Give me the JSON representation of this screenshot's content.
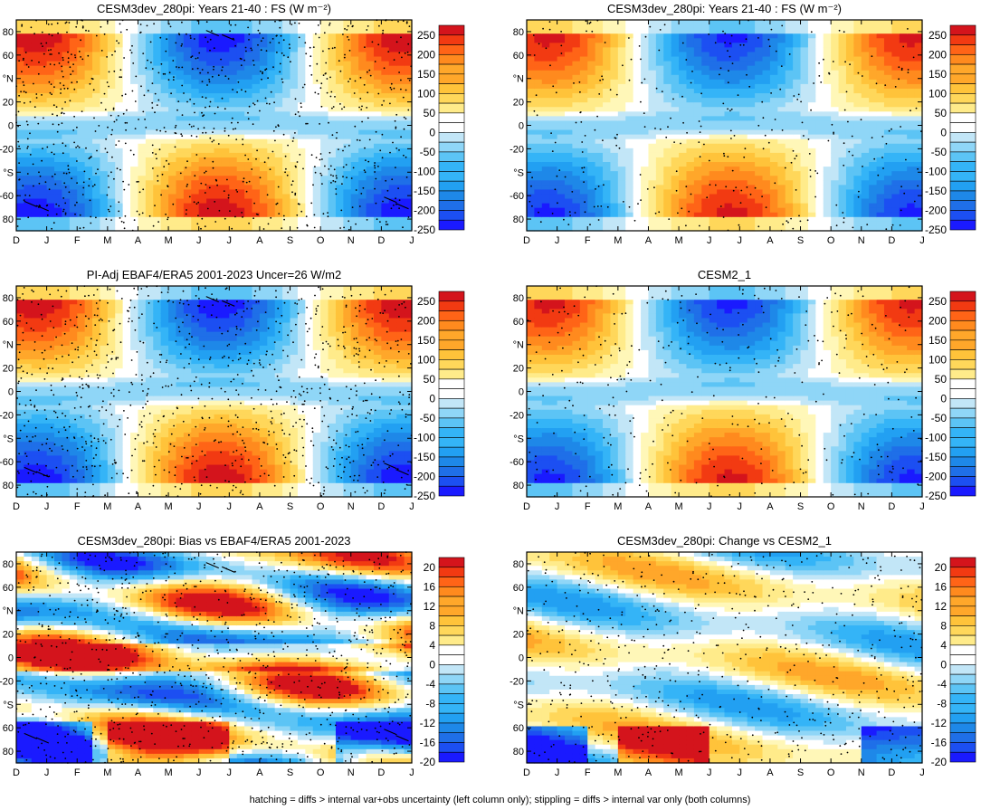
{
  "footer": "hatching = diffs > internal var+obs uncertainty (left column only); stippling = diffs > internal var only (both columns)",
  "colors": {
    "levels": [
      "#1a1aff",
      "#1c4ff2",
      "#1f6fe8",
      "#1e88e8",
      "#22a0f2",
      "#34b4f7",
      "#5cc4f5",
      "#8fd6f7",
      "#c2e6f7",
      "#ffffff",
      "#fff7b8",
      "#ffeb8a",
      "#ffd75a",
      "#ffc33a",
      "#ffa72a",
      "#ff8a1e",
      "#ff6417",
      "#f23a12",
      "#d4141c"
    ]
  },
  "chart_data": [
    {
      "type": "heatmap",
      "title": "CESM3dev_280pi: Years 21-40 : FS (W m⁻²)",
      "x_ticks": [
        "D",
        "J",
        "F",
        "M",
        "A",
        "M",
        "J",
        "J",
        "A",
        "S",
        "O",
        "N",
        "D",
        "J"
      ],
      "y_ticks": [
        "80",
        "60",
        "°N",
        "20",
        "0",
        "-20",
        "°S",
        "-60",
        "80"
      ],
      "colorbar_ticks": [
        "250",
        "200",
        "150",
        "100",
        "50",
        "0",
        "-50",
        "-100",
        "-150",
        "-200",
        "-250"
      ],
      "pattern": "climatology",
      "stipple": "dense",
      "hatching": true
    },
    {
      "type": "heatmap",
      "title": "CESM3dev_280pi: Years 21-40 : FS (W m⁻²)",
      "x_ticks": [
        "D",
        "J",
        "F",
        "M",
        "A",
        "M",
        "J",
        "J",
        "A",
        "S",
        "O",
        "N",
        "D",
        "J"
      ],
      "y_ticks": [
        "80",
        "60",
        "°N",
        "20",
        "0",
        "-20",
        "°S",
        "-60",
        "80"
      ],
      "colorbar_ticks": [
        "250",
        "200",
        "150",
        "100",
        "50",
        "0",
        "-50",
        "-100",
        "-150",
        "-200",
        "-250"
      ],
      "pattern": "climatology",
      "stipple": "sparse",
      "hatching": false
    },
    {
      "type": "heatmap",
      "title": "PI-Adj EBAF4/ERA5 2001-2023 Uncer=26 W/m2",
      "x_ticks": [
        "D",
        "J",
        "F",
        "M",
        "A",
        "M",
        "J",
        "J",
        "A",
        "S",
        "O",
        "N",
        "D",
        "J"
      ],
      "y_ticks": [
        "80",
        "60",
        "°N",
        "20",
        "0",
        "-20",
        "°S",
        "-60",
        "80"
      ],
      "colorbar_ticks": [
        "250",
        "200",
        "150",
        "100",
        "50",
        "0",
        "-50",
        "-100",
        "-150",
        "-200",
        "-250"
      ],
      "pattern": "climatology",
      "stipple": "dense",
      "hatching": true
    },
    {
      "type": "heatmap",
      "title": "CESM2_1",
      "x_ticks": [
        "D",
        "J",
        "F",
        "M",
        "A",
        "M",
        "J",
        "J",
        "A",
        "S",
        "O",
        "N",
        "D",
        "J"
      ],
      "y_ticks": [
        "80",
        "60",
        "°N",
        "20",
        "0",
        "-20",
        "°S",
        "-60",
        "80"
      ],
      "colorbar_ticks": [
        "250",
        "200",
        "150",
        "100",
        "50",
        "0",
        "-50",
        "-100",
        "-150",
        "-200",
        "-250"
      ],
      "pattern": "climatology",
      "stipple": "sparse",
      "hatching": false
    },
    {
      "type": "heatmap",
      "title": "CESM3dev_280pi: Bias vs EBAF4/ERA5 2001-2023",
      "x_ticks": [
        "D",
        "J",
        "F",
        "M",
        "A",
        "M",
        "J",
        "J",
        "A",
        "S",
        "O",
        "N",
        "D",
        "J"
      ],
      "y_ticks": [
        "80",
        "60",
        "°N",
        "20",
        "0",
        "-20",
        "°S",
        "60",
        "80"
      ],
      "colorbar_ticks": [
        "20",
        "16",
        "12",
        "8",
        "4",
        "0",
        "-4",
        "-8",
        "-12",
        "-16",
        "-20"
      ],
      "pattern": "bias",
      "stipple": "dense",
      "hatching": true
    },
    {
      "type": "heatmap",
      "title": "CESM3dev_280pi: Change vs CESM2_1",
      "x_ticks": [
        "D",
        "J",
        "F",
        "M",
        "A",
        "M",
        "J",
        "J",
        "A",
        "S",
        "O",
        "N",
        "D",
        "J"
      ],
      "y_ticks": [
        "80",
        "60",
        "°N",
        "20",
        "0",
        "-20",
        "°S",
        "60",
        "80"
      ],
      "colorbar_ticks": [
        "20",
        "16",
        "12",
        "8",
        "4",
        "0",
        "-4",
        "-8",
        "-12",
        "-16",
        "-20"
      ],
      "pattern": "change",
      "stipple": "medium",
      "hatching": false
    }
  ]
}
